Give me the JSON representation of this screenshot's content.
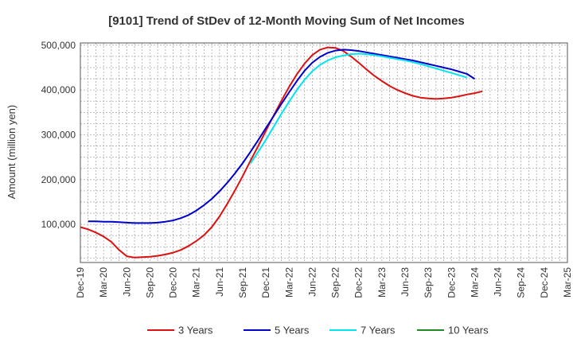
{
  "chart_data": {
    "type": "line",
    "title": "[9101]  Trend of StDev of 12-Month Moving Sum of Net Incomes",
    "ylabel": "Amount (million yen)",
    "xlabel": "",
    "ylim": [
      15000,
      505000
    ],
    "yticks": [
      100000,
      200000,
      300000,
      400000,
      500000
    ],
    "ytick_labels": [
      "100,000",
      "200,000",
      "300,000",
      "400,000",
      "500,000"
    ],
    "x_labels": [
      "Dec-19",
      "Mar-20",
      "Jun-20",
      "Sep-20",
      "Dec-20",
      "Mar-21",
      "Jun-21",
      "Sep-21",
      "Dec-21",
      "Mar-22",
      "Jun-22",
      "Sep-22",
      "Dec-22",
      "Mar-23",
      "Jun-23",
      "Sep-23",
      "Dec-23",
      "Mar-24",
      "Jun-24",
      "Sep-24",
      "Dec-24",
      "Mar-25"
    ],
    "grid": true,
    "legend_position": "bottom",
    "series": [
      {
        "name": "3 Years",
        "color": "#dd1111",
        "x_start": 0,
        "values": [
          94000,
          89000,
          82000,
          73000,
          61000,
          43000,
          29000,
          26000,
          27000,
          28000,
          30000,
          33000,
          37000,
          43000,
          52000,
          63000,
          76000,
          94000,
          118000,
          146000,
          176000,
          208000,
          242000,
          275000,
          309000,
          343000,
          376000,
          407000,
          435000,
          459000,
          478000,
          490000,
          495000,
          494000,
          487000,
          475000,
          461000,
          446000,
          432000,
          420000,
          409000,
          400000,
          393000,
          387000,
          383000,
          381000,
          380000,
          381000,
          383000,
          386000,
          390000,
          393000,
          397000
        ]
      },
      {
        "name": "5 Years",
        "color": "#0000cc",
        "x_start": 1,
        "values": [
          107000,
          107000,
          106000,
          106000,
          105000,
          104000,
          103000,
          103000,
          103000,
          104000,
          106000,
          109000,
          114000,
          121000,
          131000,
          143000,
          157000,
          174000,
          193000,
          214000,
          237000,
          262000,
          288000,
          315000,
          342000,
          369000,
          395000,
          420000,
          443000,
          461000,
          474000,
          483000,
          488000,
          490000,
          489000,
          487000,
          484000,
          481000,
          478000,
          475000,
          472000,
          469000,
          466000,
          462000,
          458000,
          454000,
          450000,
          446000,
          441000,
          436000,
          425000
        ]
      },
      {
        "name": "7 Years",
        "color": "#00e5ee",
        "x_start": 22,
        "values": [
          236000,
          262000,
          289000,
          318000,
          347000,
          374000,
          400000,
          423000,
          442000,
          456000,
          466000,
          473000,
          477000,
          480000,
          481000,
          480000,
          478000,
          475000,
          472000,
          469000,
          466000,
          462000,
          458000,
          453000,
          448000,
          443000,
          438000,
          433000,
          428000
        ]
      },
      {
        "name": "10 Years",
        "color": "#228b22",
        "x_start": 0,
        "values": []
      }
    ]
  }
}
